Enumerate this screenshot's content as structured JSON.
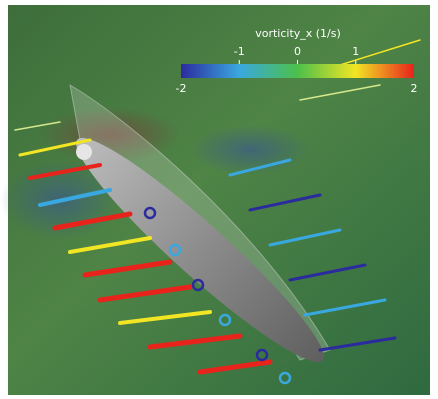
{
  "colorbar": {
    "title": "vorticity_x (1/s)",
    "lim": [
      -2,
      2
    ],
    "ticks": [
      -1,
      0,
      1
    ]
  }
}
